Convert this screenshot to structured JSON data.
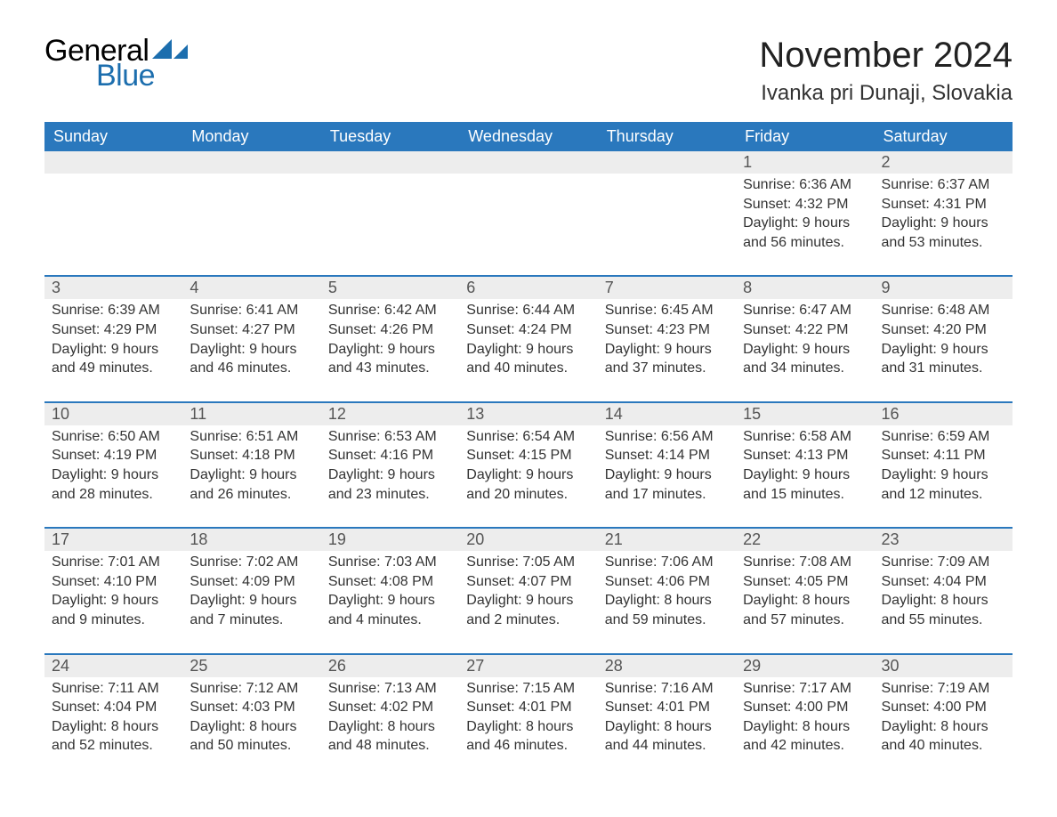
{
  "logo": {
    "text1": "General",
    "text2": "Blue",
    "tri_color": "#1c6eae"
  },
  "title": "November 2024",
  "location": "Ivanka pri Dunaji, Slovakia",
  "colors": {
    "header_bg": "#2a78bd",
    "header_text": "#ffffff",
    "row_border": "#2a78bd",
    "num_bg": "#ededed",
    "body_text": "#333333"
  },
  "weekdays": [
    "Sunday",
    "Monday",
    "Tuesday",
    "Wednesday",
    "Thursday",
    "Friday",
    "Saturday"
  ],
  "weeks": [
    [
      null,
      null,
      null,
      null,
      null,
      {
        "n": "1",
        "sr": "6:36 AM",
        "ss": "4:32 PM",
        "dl": "9 hours and 56 minutes."
      },
      {
        "n": "2",
        "sr": "6:37 AM",
        "ss": "4:31 PM",
        "dl": "9 hours and 53 minutes."
      }
    ],
    [
      {
        "n": "3",
        "sr": "6:39 AM",
        "ss": "4:29 PM",
        "dl": "9 hours and 49 minutes."
      },
      {
        "n": "4",
        "sr": "6:41 AM",
        "ss": "4:27 PM",
        "dl": "9 hours and 46 minutes."
      },
      {
        "n": "5",
        "sr": "6:42 AM",
        "ss": "4:26 PM",
        "dl": "9 hours and 43 minutes."
      },
      {
        "n": "6",
        "sr": "6:44 AM",
        "ss": "4:24 PM",
        "dl": "9 hours and 40 minutes."
      },
      {
        "n": "7",
        "sr": "6:45 AM",
        "ss": "4:23 PM",
        "dl": "9 hours and 37 minutes."
      },
      {
        "n": "8",
        "sr": "6:47 AM",
        "ss": "4:22 PM",
        "dl": "9 hours and 34 minutes."
      },
      {
        "n": "9",
        "sr": "6:48 AM",
        "ss": "4:20 PM",
        "dl": "9 hours and 31 minutes."
      }
    ],
    [
      {
        "n": "10",
        "sr": "6:50 AM",
        "ss": "4:19 PM",
        "dl": "9 hours and 28 minutes."
      },
      {
        "n": "11",
        "sr": "6:51 AM",
        "ss": "4:18 PM",
        "dl": "9 hours and 26 minutes."
      },
      {
        "n": "12",
        "sr": "6:53 AM",
        "ss": "4:16 PM",
        "dl": "9 hours and 23 minutes."
      },
      {
        "n": "13",
        "sr": "6:54 AM",
        "ss": "4:15 PM",
        "dl": "9 hours and 20 minutes."
      },
      {
        "n": "14",
        "sr": "6:56 AM",
        "ss": "4:14 PM",
        "dl": "9 hours and 17 minutes."
      },
      {
        "n": "15",
        "sr": "6:58 AM",
        "ss": "4:13 PM",
        "dl": "9 hours and 15 minutes."
      },
      {
        "n": "16",
        "sr": "6:59 AM",
        "ss": "4:11 PM",
        "dl": "9 hours and 12 minutes."
      }
    ],
    [
      {
        "n": "17",
        "sr": "7:01 AM",
        "ss": "4:10 PM",
        "dl": "9 hours and 9 minutes."
      },
      {
        "n": "18",
        "sr": "7:02 AM",
        "ss": "4:09 PM",
        "dl": "9 hours and 7 minutes."
      },
      {
        "n": "19",
        "sr": "7:03 AM",
        "ss": "4:08 PM",
        "dl": "9 hours and 4 minutes."
      },
      {
        "n": "20",
        "sr": "7:05 AM",
        "ss": "4:07 PM",
        "dl": "9 hours and 2 minutes."
      },
      {
        "n": "21",
        "sr": "7:06 AM",
        "ss": "4:06 PM",
        "dl": "8 hours and 59 minutes."
      },
      {
        "n": "22",
        "sr": "7:08 AM",
        "ss": "4:05 PM",
        "dl": "8 hours and 57 minutes."
      },
      {
        "n": "23",
        "sr": "7:09 AM",
        "ss": "4:04 PM",
        "dl": "8 hours and 55 minutes."
      }
    ],
    [
      {
        "n": "24",
        "sr": "7:11 AM",
        "ss": "4:04 PM",
        "dl": "8 hours and 52 minutes."
      },
      {
        "n": "25",
        "sr": "7:12 AM",
        "ss": "4:03 PM",
        "dl": "8 hours and 50 minutes."
      },
      {
        "n": "26",
        "sr": "7:13 AM",
        "ss": "4:02 PM",
        "dl": "8 hours and 48 minutes."
      },
      {
        "n": "27",
        "sr": "7:15 AM",
        "ss": "4:01 PM",
        "dl": "8 hours and 46 minutes."
      },
      {
        "n": "28",
        "sr": "7:16 AM",
        "ss": "4:01 PM",
        "dl": "8 hours and 44 minutes."
      },
      {
        "n": "29",
        "sr": "7:17 AM",
        "ss": "4:00 PM",
        "dl": "8 hours and 42 minutes."
      },
      {
        "n": "30",
        "sr": "7:19 AM",
        "ss": "4:00 PM",
        "dl": "8 hours and 40 minutes."
      }
    ]
  ],
  "labels": {
    "sunrise": "Sunrise: ",
    "sunset": "Sunset: ",
    "daylight": "Daylight: "
  }
}
